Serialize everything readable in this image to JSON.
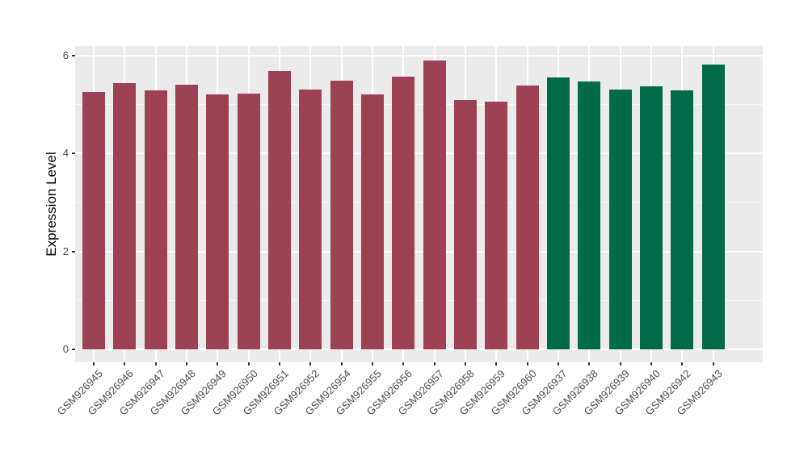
{
  "chart_data": {
    "type": "bar",
    "ylabel": "Expression Level",
    "ylim": [
      0,
      6.2
    ],
    "yticks": [
      0,
      2,
      4,
      6
    ],
    "minor_yticks": [
      1,
      3,
      5
    ],
    "legend": "none",
    "colors": {
      "panel_bg": "#EBEBEB",
      "gridline": "#FFFFFF",
      "tick_label": "#4D4D4D",
      "axis_title": "#000000",
      "tick_mark": "#333333",
      "group_a": "#9C4254",
      "group_b": "#006B48"
    },
    "bars": [
      {
        "label": "GSM926945",
        "value": 5.26,
        "group": "group_a"
      },
      {
        "label": "GSM926946",
        "value": 5.44,
        "group": "group_a"
      },
      {
        "label": "GSM926947",
        "value": 5.29,
        "group": "group_a"
      },
      {
        "label": "GSM926948",
        "value": 5.4,
        "group": "group_a"
      },
      {
        "label": "GSM926949",
        "value": 5.21,
        "group": "group_a"
      },
      {
        "label": "GSM926950",
        "value": 5.23,
        "group": "group_a"
      },
      {
        "label": "GSM926951",
        "value": 5.68,
        "group": "group_a"
      },
      {
        "label": "GSM926952",
        "value": 5.31,
        "group": "group_a"
      },
      {
        "label": "GSM926954",
        "value": 5.49,
        "group": "group_a"
      },
      {
        "label": "GSM926955",
        "value": 5.21,
        "group": "group_a"
      },
      {
        "label": "GSM926956",
        "value": 5.57,
        "group": "group_a"
      },
      {
        "label": "GSM926957",
        "value": 5.9,
        "group": "group_a"
      },
      {
        "label": "GSM926958",
        "value": 5.09,
        "group": "group_a"
      },
      {
        "label": "GSM926959",
        "value": 5.06,
        "group": "group_a"
      },
      {
        "label": "GSM926960",
        "value": 5.38,
        "group": "group_a"
      },
      {
        "label": "GSM926937",
        "value": 5.55,
        "group": "group_b"
      },
      {
        "label": "GSM926938",
        "value": 5.47,
        "group": "group_b"
      },
      {
        "label": "GSM926939",
        "value": 5.3,
        "group": "group_b"
      },
      {
        "label": "GSM926940",
        "value": 5.37,
        "group": "group_b"
      },
      {
        "label": "GSM926942",
        "value": 5.29,
        "group": "group_b"
      },
      {
        "label": "GSM926943",
        "value": 5.81,
        "group": "group_b"
      }
    ]
  }
}
